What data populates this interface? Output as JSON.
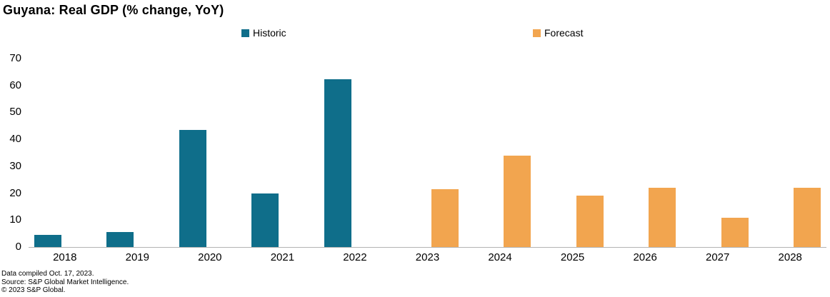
{
  "title": "Guyana: Real GDP (% change, YoY)",
  "legend": [
    {
      "label": "Historic",
      "color": "#0f6e8a"
    },
    {
      "label": "Forecast",
      "color": "#f2a54f"
    }
  ],
  "footer": {
    "line1": "Data compiled Oct. 17, 2023.",
    "line2": "Source: S&P Global Market Intelligence.",
    "line3": "© 2023 S&P Global."
  },
  "chart_data": {
    "type": "bar",
    "title": "Guyana: Real GDP (% change, YoY)",
    "categories": [
      "2018",
      "2019",
      "2020",
      "2021",
      "2022",
      "2023",
      "2024",
      "2025",
      "2026",
      "2027",
      "2028"
    ],
    "series": [
      {
        "name": "Historic",
        "color": "#0f6e8a",
        "values": [
          4.5,
          5.5,
          43.5,
          20,
          62.3,
          null,
          null,
          null,
          null,
          null,
          null
        ]
      },
      {
        "name": "Forecast",
        "color": "#f2a54f",
        "values": [
          null,
          null,
          null,
          null,
          null,
          21.5,
          34,
          19,
          22,
          11,
          22
        ]
      }
    ],
    "xlabel": "",
    "ylabel": "",
    "ylim": [
      0,
      70
    ],
    "yticks": [
      0,
      10,
      20,
      30,
      40,
      50,
      60,
      70
    ],
    "grid": false,
    "legend_position": "top"
  }
}
